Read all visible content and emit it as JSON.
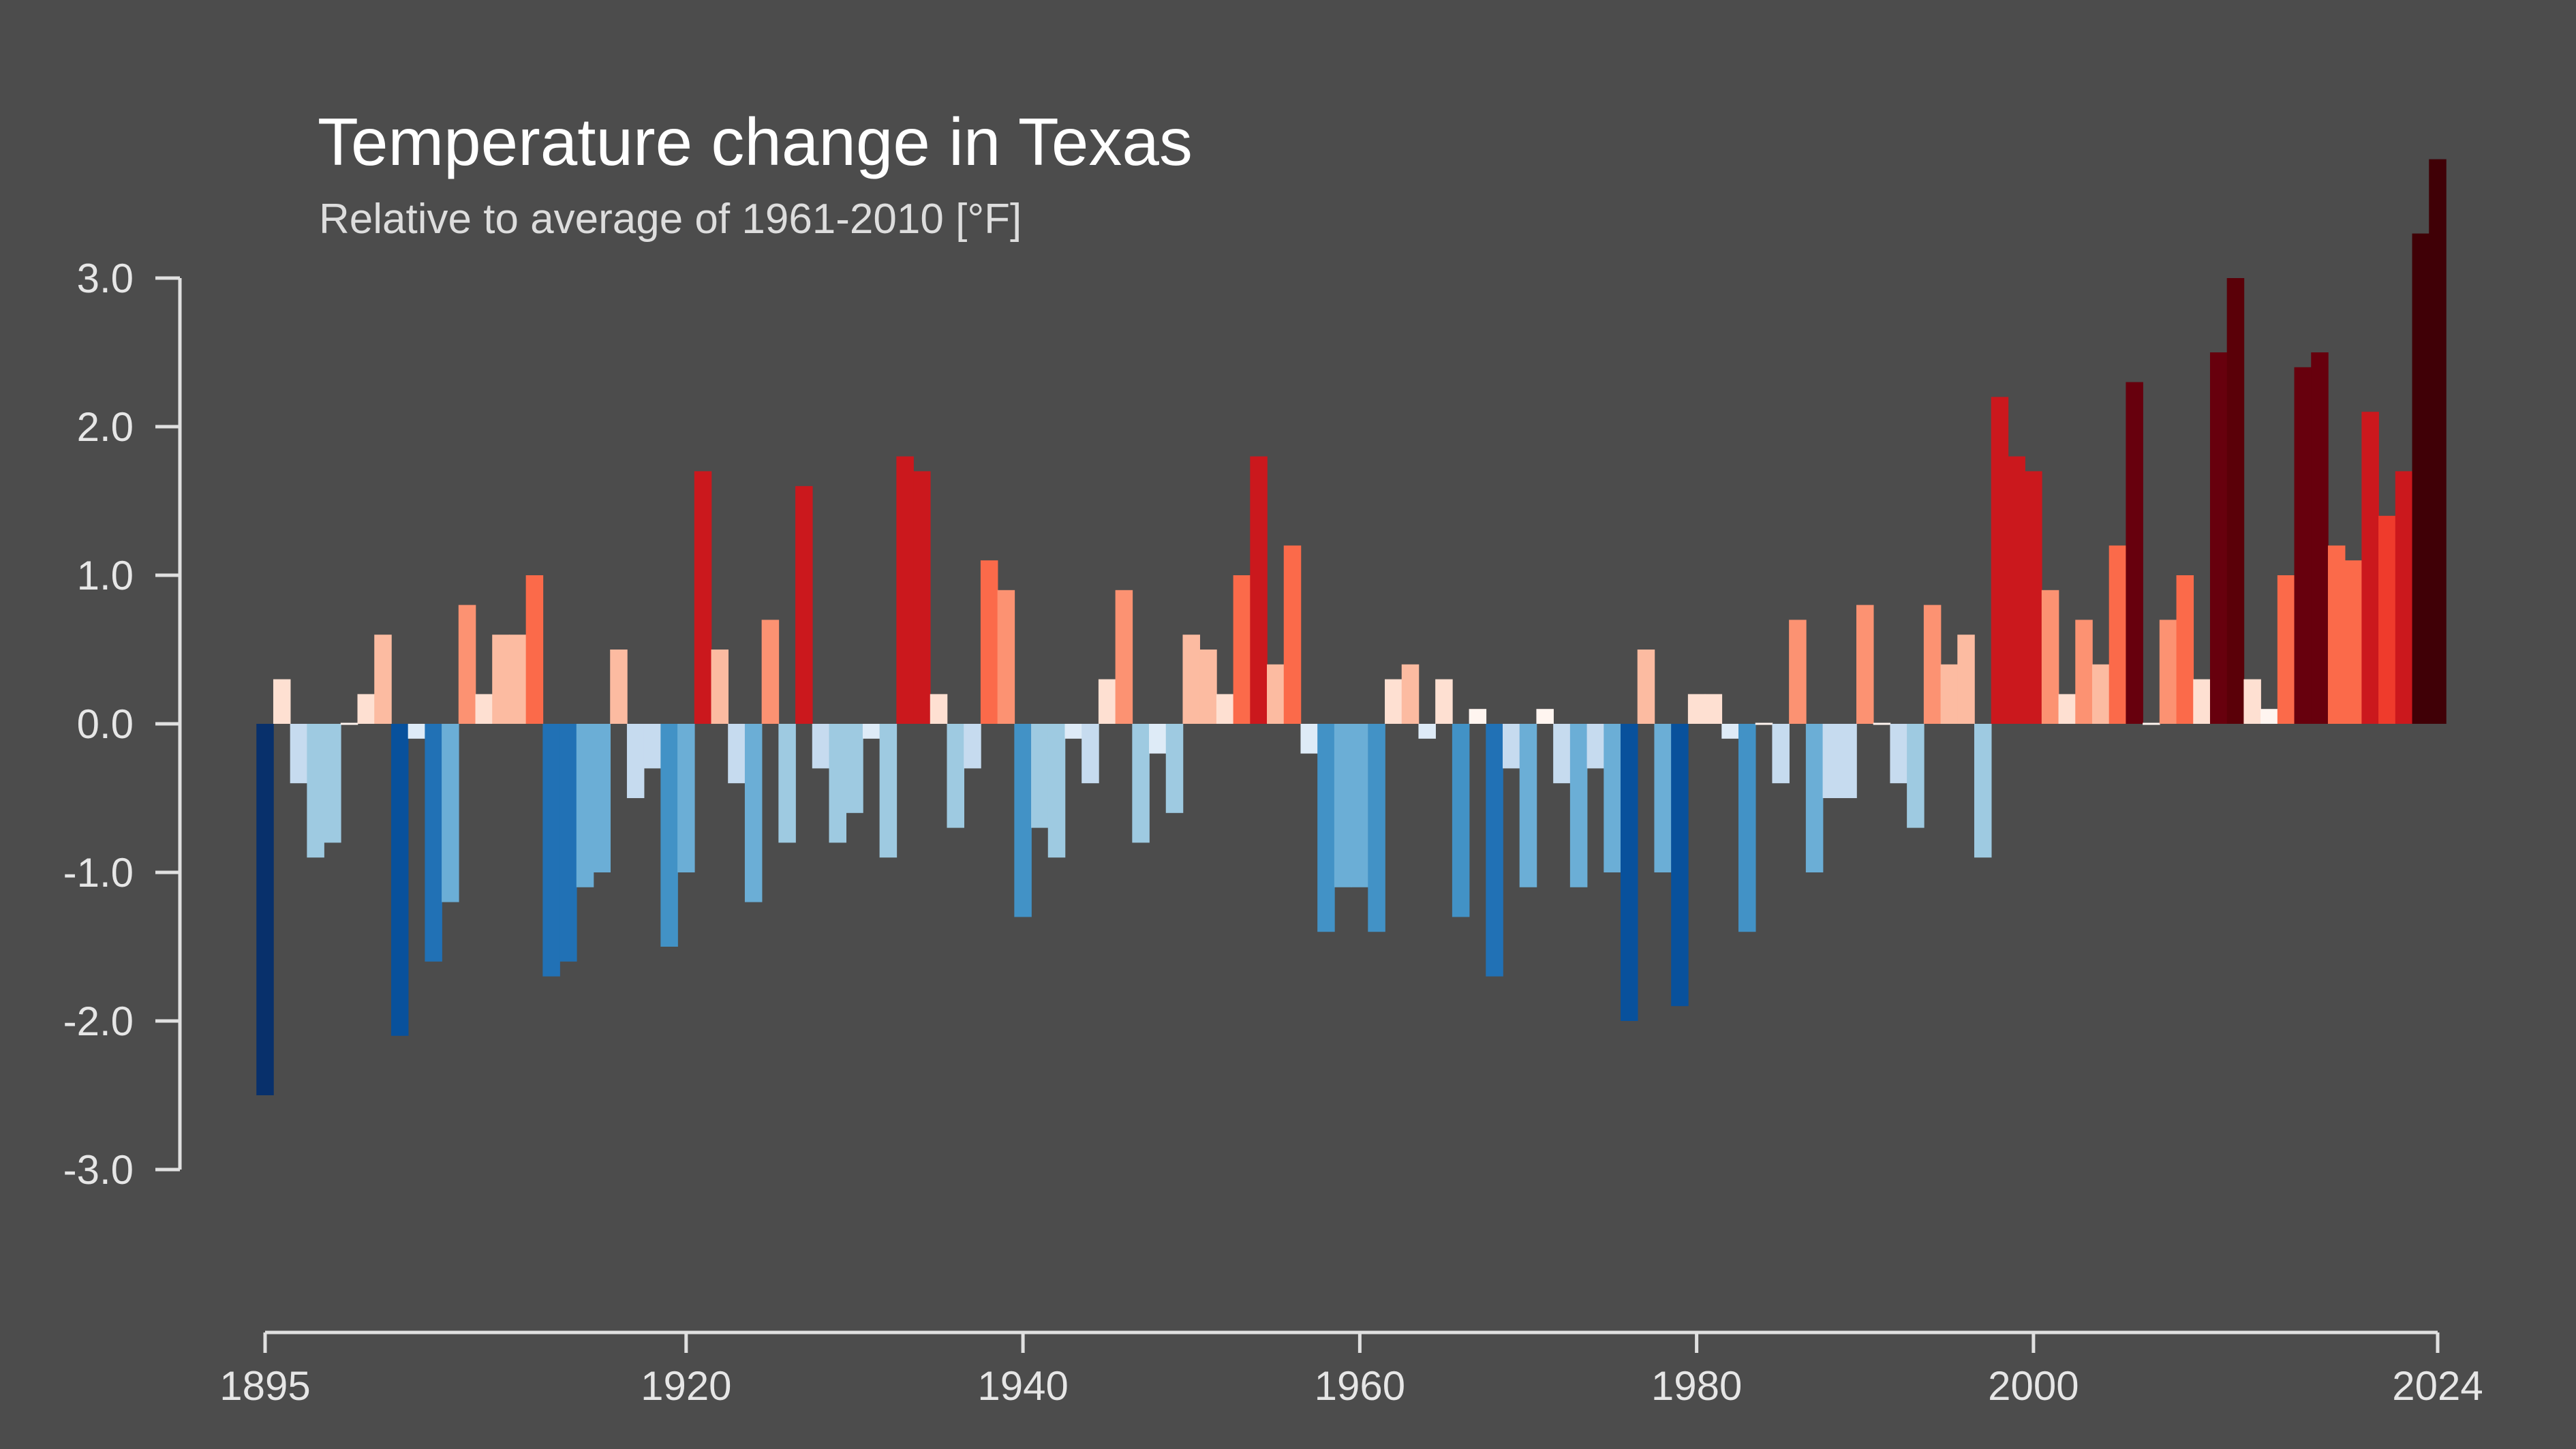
{
  "chart_data": {
    "type": "bar",
    "title": "Temperature change in Texas",
    "subtitle": "Relative to average of 1961-2010  [°F]",
    "xlabel": "",
    "ylabel": "",
    "ylim": [
      -3,
      3.8
    ],
    "yticks": [
      3,
      2,
      1,
      0,
      -1,
      -2,
      -3
    ],
    "ytick_labels": [
      "3.0",
      "2.0",
      "1.0",
      "0.0",
      "-1.0",
      "-2.0",
      "-3.0"
    ],
    "xticks": [
      1895,
      1920,
      1940,
      1960,
      1980,
      2000,
      2024
    ],
    "xtick_labels": [
      "1895",
      "1920",
      "1940",
      "1960",
      "1980",
      "2000",
      "2024"
    ],
    "grid": false,
    "legend": "none",
    "color_scale": "blue (cold) to dark red (warm)",
    "years": [
      1895,
      1896,
      1897,
      1898,
      1899,
      1900,
      1901,
      1902,
      1903,
      1904,
      1905,
      1906,
      1907,
      1908,
      1909,
      1910,
      1911,
      1912,
      1913,
      1914,
      1915,
      1916,
      1917,
      1918,
      1919,
      1920,
      1921,
      1922,
      1923,
      1924,
      1925,
      1926,
      1927,
      1928,
      1929,
      1930,
      1931,
      1932,
      1933,
      1934,
      1935,
      1936,
      1937,
      1938,
      1939,
      1940,
      1941,
      1942,
      1943,
      1944,
      1945,
      1946,
      1947,
      1948,
      1949,
      1950,
      1951,
      1952,
      1953,
      1954,
      1955,
      1956,
      1957,
      1958,
      1959,
      1960,
      1961,
      1962,
      1963,
      1964,
      1965,
      1966,
      1967,
      1968,
      1969,
      1970,
      1971,
      1972,
      1973,
      1974,
      1975,
      1976,
      1977,
      1978,
      1979,
      1980,
      1981,
      1982,
      1983,
      1984,
      1985,
      1986,
      1987,
      1988,
      1989,
      1990,
      1991,
      1992,
      1993,
      1994,
      1995,
      1996,
      1997,
      1998,
      1999,
      2000,
      2001,
      2002,
      2003,
      2004,
      2005,
      2006,
      2007,
      2008,
      2009,
      2010,
      2011,
      2012,
      2013,
      2014,
      2015,
      2016,
      2017,
      2018,
      2019,
      2020,
      2021,
      2022,
      2023,
      2024
    ],
    "values": [
      -2.5,
      0.3,
      -0.4,
      -0.9,
      -0.8,
      0.0,
      0.2,
      0.6,
      -2.1,
      -0.1,
      -1.6,
      -1.2,
      0.8,
      0.2,
      0.6,
      0.6,
      1.0,
      -1.7,
      -1.6,
      -1.1,
      -1.0,
      0.5,
      -0.5,
      -0.3,
      -1.5,
      -1.0,
      1.7,
      0.5,
      -0.4,
      -1.2,
      0.7,
      -0.8,
      1.6,
      -0.3,
      -0.8,
      -0.6,
      -0.1,
      -0.9,
      1.8,
      1.7,
      0.2,
      -0.7,
      -0.3,
      1.1,
      0.9,
      -1.3,
      -0.7,
      -0.9,
      -0.1,
      -0.4,
      0.3,
      0.9,
      -0.8,
      -0.2,
      -0.6,
      0.6,
      0.5,
      0.2,
      1.0,
      1.8,
      0.4,
      1.2,
      -0.2,
      -1.4,
      -1.1,
      -1.1,
      -1.4,
      0.3,
      0.4,
      -0.1,
      0.3,
      -1.3,
      0.1,
      -1.7,
      -0.3,
      -1.1,
      0.1,
      -0.4,
      -1.1,
      -0.3,
      -1.0,
      -2.0,
      0.5,
      -1.0,
      -1.9,
      0.2,
      0.2,
      -0.1,
      -1.4,
      0.0,
      -0.4,
      0.7,
      -1.0,
      -0.5,
      -0.5,
      0.8,
      0.0,
      -0.4,
      -0.7,
      0.8,
      0.4,
      0.6,
      -0.9,
      2.2,
      1.8,
      1.7,
      0.9,
      0.2,
      0.7,
      0.4,
      1.2,
      2.3,
      0.0,
      0.7,
      1.0,
      0.3,
      2.5,
      3.0,
      0.3,
      0.1,
      1.0,
      2.4,
      2.5,
      1.2,
      1.1,
      2.1,
      1.4,
      1.7,
      3.3,
      3.8
    ]
  }
}
